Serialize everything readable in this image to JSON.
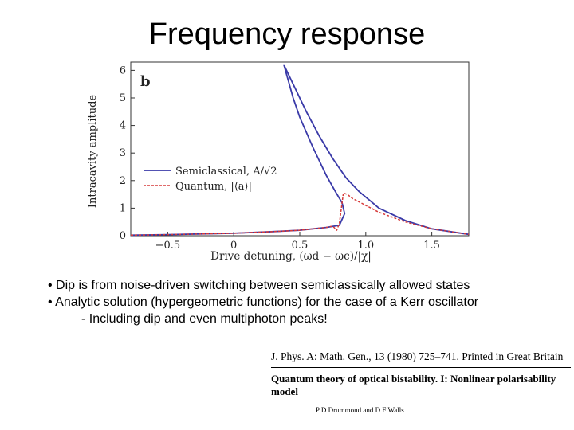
{
  "slide": {
    "title": "Frequency response",
    "bullets": [
      "• Dip is from noise-driven switching between semiclassically allowed states",
      "• Analytic solution (hypergeometric functions) for the case of a Kerr oscillator",
      "- Including dip and even multiphoton peaks!"
    ]
  },
  "reference": {
    "journal_line": "J. Phys. A: Math. Gen., 13 (1980) 725–741. Printed in Great Britain",
    "paper_title": "Quantum theory of optical bistability. I: Nonlinear polarisability model",
    "authors": "P D Drummond and D F Walls"
  },
  "chart_data": {
    "type": "line",
    "panel_label": "b",
    "xlabel": "Drive detuning, (ωd − ωc)/|χ|",
    "ylabel": "Intracavity amplitude",
    "xlim": [
      -0.78,
      1.78
    ],
    "ylim": [
      0,
      6.3
    ],
    "xticks": [
      -0.5,
      0,
      0.5,
      1.0,
      1.5
    ],
    "xtick_labels": [
      "−0.5",
      "0",
      "0.5",
      "1.0",
      "1.5"
    ],
    "yticks": [
      0,
      1,
      2,
      3,
      4,
      5,
      6
    ],
    "ytick_labels": [
      "0",
      "1",
      "2",
      "3",
      "4",
      "5",
      "6"
    ],
    "grid": false,
    "legend": "middle-left",
    "series": [
      {
        "name": "Semiclassical, A/√2",
        "color": "#3a3aa8",
        "style": "solid",
        "x": [
          -0.78,
          -0.5,
          -0.2,
          0.0,
          0.3,
          0.5,
          0.7,
          0.8,
          0.84,
          0.82,
          0.77,
          0.7,
          0.6,
          0.5,
          0.45,
          0.38,
          0.45,
          0.55,
          0.65,
          0.75,
          0.85,
          0.95,
          1.1,
          1.3,
          1.5,
          1.78
        ],
        "y": [
          0.02,
          0.04,
          0.07,
          0.09,
          0.15,
          0.2,
          0.3,
          0.38,
          0.8,
          1.2,
          1.6,
          2.2,
          3.2,
          4.3,
          5.0,
          6.2,
          5.5,
          4.5,
          3.6,
          2.8,
          2.1,
          1.6,
          1.0,
          0.55,
          0.25,
          0.05
        ]
      },
      {
        "name": "Quantum, |⟨a⟩|",
        "color": "#d63a3a",
        "style": "dashed",
        "x": [
          -0.78,
          -0.5,
          -0.2,
          0.0,
          0.3,
          0.5,
          0.6,
          0.7,
          0.75,
          0.78,
          0.8,
          0.83,
          0.86,
          0.9,
          1.0,
          1.1,
          1.3,
          1.5,
          1.78
        ],
        "y": [
          0.02,
          0.04,
          0.07,
          0.09,
          0.15,
          0.2,
          0.25,
          0.3,
          0.35,
          0.2,
          0.45,
          1.55,
          1.5,
          1.35,
          1.1,
          0.85,
          0.5,
          0.25,
          0.05
        ]
      }
    ]
  }
}
